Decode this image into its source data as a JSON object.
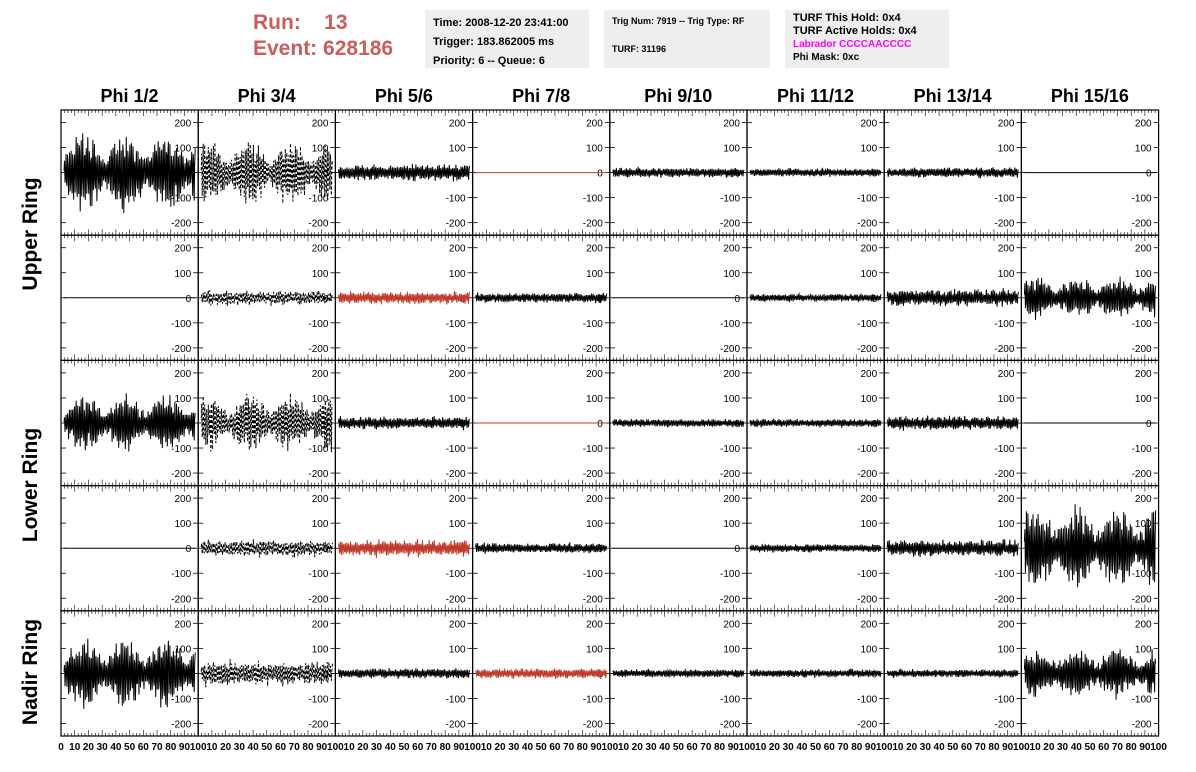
{
  "header": {
    "run_label": "Run:",
    "run_value": "13",
    "event_label": "Event:",
    "event_value": "628186",
    "info1": [
      "Time: 2008-12-20 23:41:00",
      "Trigger: 183.862005 ms",
      "Priority: 6 -- Queue: 6"
    ],
    "info2": [
      "Trig Num: 7919 -- Trig Type: RF",
      "",
      "TURF: 31196"
    ],
    "info3": [
      "TURF This Hold: 0x4",
      "TURF Active Holds: 0x4",
      "Labrador CCCCAACCCC",
      "Phi Mask: 0xc"
    ]
  },
  "columns": [
    "Phi 1/2",
    "Phi 3/4",
    "Phi 5/6",
    "Phi 7/8",
    "Phi 9/10",
    "Phi 11/12",
    "Phi 13/14",
    "Phi 15/16"
  ],
  "rows": [
    "Upper Ring",
    "Lower Ring",
    "Nadir Ring"
  ],
  "colors": {
    "trace": "#000000",
    "highlight": "#c0392b",
    "title_red": "#cd5c5c",
    "magenta": "#ff00ff"
  },
  "chart_data": {
    "type": "line",
    "title": "",
    "xlabel": "",
    "ylabel": "",
    "ylim": [
      -250,
      250
    ],
    "xlim": [
      0,
      100
    ],
    "y_ticks": [
      -200,
      -100,
      0,
      100,
      200
    ],
    "x_ticks": [
      "0",
      "10",
      "20",
      "30",
      "40",
      "50",
      "60",
      "70",
      "80",
      "90",
      "100"
    ],
    "grid": false,
    "panels": [
      [
        {
          "amp": 170,
          "style": "solid",
          "color": "black",
          "shape": "bursty"
        },
        {
          "amp": 140,
          "style": "dashed",
          "color": "black",
          "shape": "bursty"
        },
        {
          "amp": 40,
          "style": "solid",
          "color": "black",
          "shape": "noise"
        },
        {
          "amp": 0,
          "style": "solid",
          "color": "red",
          "shape": "flat"
        },
        {
          "amp": 25,
          "style": "solid",
          "color": "black",
          "shape": "noise"
        },
        {
          "amp": 20,
          "style": "solid",
          "color": "black",
          "shape": "noise"
        },
        {
          "amp": 25,
          "style": "solid",
          "color": "black",
          "shape": "noise"
        },
        {
          "amp": 0,
          "style": "solid",
          "color": "black",
          "shape": "flat"
        }
      ],
      [
        {
          "amp": 0,
          "style": "solid",
          "color": "black",
          "shape": "flat"
        },
        {
          "amp": 35,
          "style": "dashed",
          "color": "black",
          "shape": "noise"
        },
        {
          "amp": 30,
          "style": "solid",
          "color": "red",
          "shape": "noise"
        },
        {
          "amp": 25,
          "style": "solid",
          "color": "black",
          "shape": "noise"
        },
        {
          "amp": 0,
          "style": "solid",
          "color": "black",
          "shape": "flat"
        },
        {
          "amp": 20,
          "style": "solid",
          "color": "black",
          "shape": "noise"
        },
        {
          "amp": 40,
          "style": "solid",
          "color": "black",
          "shape": "noise"
        },
        {
          "amp": 90,
          "style": "solid",
          "color": "black",
          "shape": "bursty"
        }
      ],
      [
        {
          "amp": 120,
          "style": "solid",
          "color": "black",
          "shape": "bursty"
        },
        {
          "amp": 120,
          "style": "dashed",
          "color": "black",
          "shape": "bursty"
        },
        {
          "amp": 30,
          "style": "solid",
          "color": "black",
          "shape": "noise"
        },
        {
          "amp": 0,
          "style": "solid",
          "color": "red",
          "shape": "flat"
        },
        {
          "amp": 20,
          "style": "solid",
          "color": "black",
          "shape": "noise"
        },
        {
          "amp": 20,
          "style": "solid",
          "color": "black",
          "shape": "noise"
        },
        {
          "amp": 35,
          "style": "solid",
          "color": "black",
          "shape": "noise"
        },
        {
          "amp": 0,
          "style": "solid",
          "color": "black",
          "shape": "flat"
        }
      ],
      [
        {
          "amp": 0,
          "style": "solid",
          "color": "black",
          "shape": "flat"
        },
        {
          "amp": 40,
          "style": "dashed",
          "color": "black",
          "shape": "noise"
        },
        {
          "amp": 40,
          "style": "solid",
          "color": "red",
          "shape": "noise"
        },
        {
          "amp": 25,
          "style": "solid",
          "color": "black",
          "shape": "noise"
        },
        {
          "amp": 0,
          "style": "solid",
          "color": "black",
          "shape": "flat"
        },
        {
          "amp": 20,
          "style": "solid",
          "color": "black",
          "shape": "noise"
        },
        {
          "amp": 40,
          "style": "solid",
          "color": "black",
          "shape": "noise"
        },
        {
          "amp": 180,
          "style": "solid",
          "color": "black",
          "shape": "bursty"
        }
      ],
      [
        {
          "amp": 150,
          "style": "solid",
          "color": "black",
          "shape": "bursty"
        },
        {
          "amp": 60,
          "style": "dashed",
          "color": "black",
          "shape": "noise"
        },
        {
          "amp": 25,
          "style": "solid",
          "color": "black",
          "shape": "noise"
        },
        {
          "amp": 25,
          "style": "solid",
          "color": "red",
          "shape": "noise"
        },
        {
          "amp": 20,
          "style": "solid",
          "color": "black",
          "shape": "noise"
        },
        {
          "amp": 20,
          "style": "solid",
          "color": "black",
          "shape": "noise"
        },
        {
          "amp": 20,
          "style": "solid",
          "color": "black",
          "shape": "noise"
        },
        {
          "amp": 110,
          "style": "solid",
          "color": "black",
          "shape": "bursty"
        }
      ]
    ]
  }
}
